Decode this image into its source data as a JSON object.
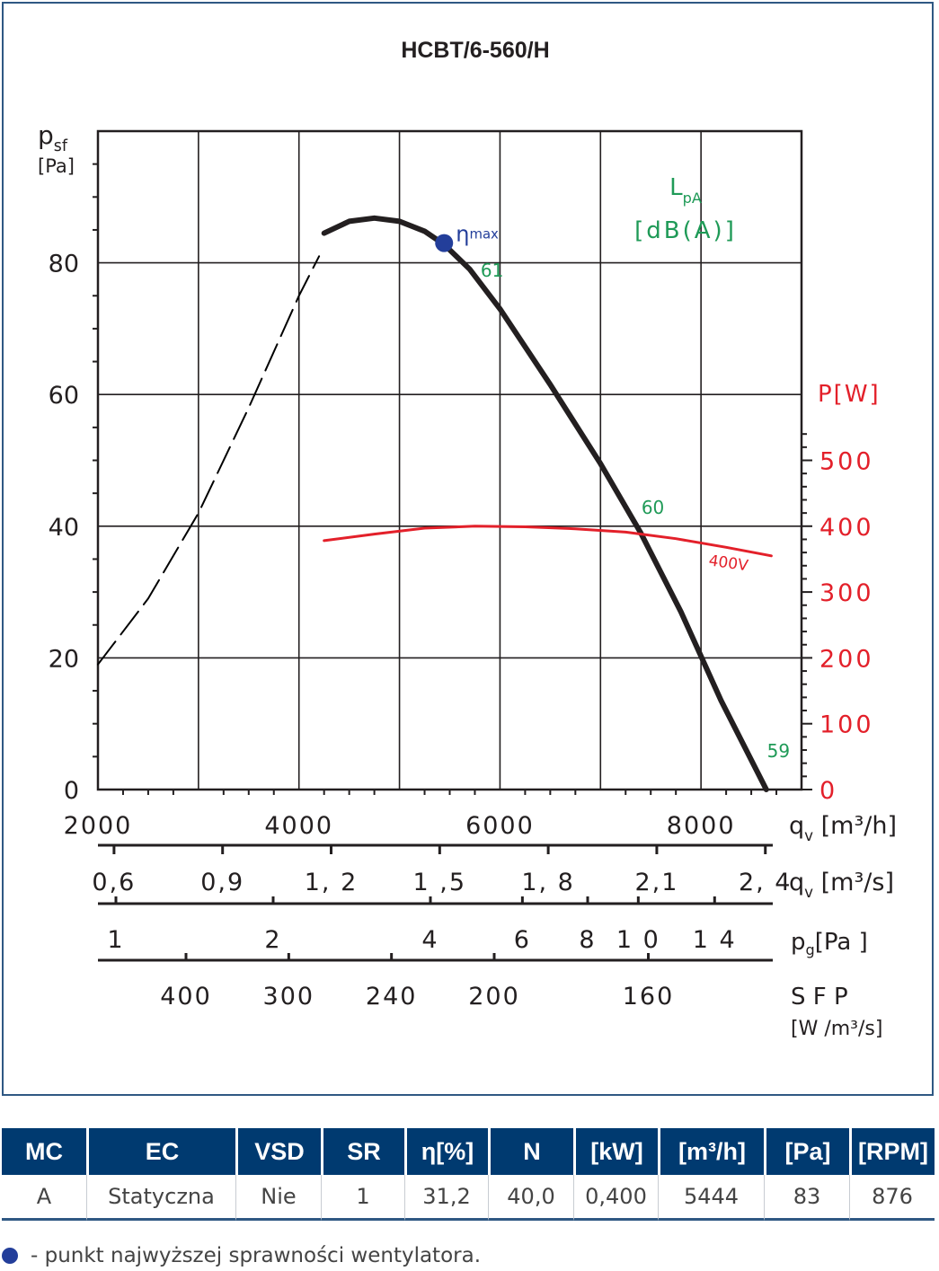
{
  "chart_data": {
    "type": "line",
    "title": "HCBT/6-560/H",
    "y_axis": {
      "label": "p",
      "label_sub": "sf",
      "unit": "[Pa]",
      "range": [
        0,
        100
      ],
      "ticks": [
        "0",
        "20",
        "40",
        "60",
        "80"
      ]
    },
    "x_axis": {
      "label": "q",
      "label_sub": "v",
      "unit": "[m³/h]",
      "range": [
        2000,
        9000
      ],
      "ticks": [
        "2000",
        "4000",
        "6000",
        "8000"
      ]
    },
    "power_axis": {
      "label": "P[W]",
      "range": [
        0,
        1000
      ],
      "ticks": [
        "0",
        "100",
        "200",
        "300",
        "400",
        "500"
      ]
    },
    "sound_label": {
      "line1": "L",
      "sub": "pA",
      "line2": "[dB(A)]"
    },
    "scale_qs": {
      "label": "q",
      "label_sub": "v",
      "unit": "[m³/s]",
      "ticks": [
        {
          "text": "0,6",
          "value": 0.6
        },
        {
          "text": "0,9",
          "value": 0.9
        },
        {
          "text": "1, 2",
          "value": 1.2
        },
        {
          "text": "1 ,5",
          "value": 1.5
        },
        {
          "text": "1, 8",
          "value": 1.8
        },
        {
          "text": "2,1",
          "value": 2.1
        },
        {
          "text": "2, 4",
          "value": 2.4
        }
      ]
    },
    "scale_pg": {
      "label": "p",
      "label_sub": "g",
      "unit": "[Pa ]",
      "ticks": [
        {
          "text": "1",
          "value": 1
        },
        {
          "text": "2",
          "value": 2
        },
        {
          "text": "4",
          "value": 4
        },
        {
          "text": "6",
          "value": 6
        },
        {
          "text": "8",
          "value": 8
        },
        {
          "text": "1 0",
          "value": 10
        },
        {
          "text": "1 4",
          "value": 14
        }
      ]
    },
    "scale_sfp": {
      "label": "S F P",
      "unit": "[W /m³/s]",
      "ticks": [
        {
          "text": "400",
          "value": 400
        },
        {
          "text": "300",
          "value": 300
        },
        {
          "text": "240",
          "value": 240
        },
        {
          "text": "200",
          "value": 200
        },
        {
          "text": "160",
          "value": 160
        }
      ]
    },
    "grid": true,
    "series": [
      {
        "role": "pressure_unstable",
        "color": "#000000",
        "style": "dashed",
        "points": [
          [
            2000,
            19
          ],
          [
            2500,
            29
          ],
          [
            3000,
            42
          ],
          [
            3500,
            58
          ],
          [
            4000,
            75
          ],
          [
            4200,
            81
          ]
        ]
      },
      {
        "role": "pressure",
        "color": "#231f20",
        "style": "solid",
        "points": [
          [
            4250,
            84.5
          ],
          [
            4500,
            86.3
          ],
          [
            4750,
            86.8
          ],
          [
            5000,
            86.3
          ],
          [
            5250,
            84.8
          ],
          [
            5444,
            82.8
          ],
          [
            5700,
            79
          ],
          [
            6000,
            73
          ],
          [
            6500,
            61.5
          ],
          [
            7000,
            49.5
          ],
          [
            7400,
            39
          ],
          [
            7800,
            27
          ],
          [
            8200,
            13.5
          ],
          [
            8650,
            0
          ]
        ]
      },
      {
        "name": "400V",
        "role": "power",
        "axis": "power",
        "color": "#e3202a",
        "style": "solid",
        "points": [
          [
            4250,
            378
          ],
          [
            4750,
            388
          ],
          [
            5250,
            397
          ],
          [
            5750,
            400
          ],
          [
            6250,
            399
          ],
          [
            6750,
            396
          ],
          [
            7250,
            391
          ],
          [
            7750,
            381
          ],
          [
            8250,
            368
          ],
          [
            8700,
            355
          ]
        ]
      }
    ],
    "eta_max": {
      "x": 5444,
      "y": 83,
      "label": "η",
      "label_sub": "max",
      "color": "#233e9a"
    },
    "sound_levels": [
      {
        "text": "61",
        "x": 5700,
        "y": 79
      },
      {
        "text": "60",
        "x": 7300,
        "y": 43
      },
      {
        "text": "59",
        "x": 8550,
        "y": 6
      }
    ]
  },
  "table": {
    "headers": [
      "MC",
      "EC",
      "VSD",
      "SR",
      "η[%]",
      "N",
      "[kW]",
      "[m³/h]",
      "[Pa]",
      "[RPM]"
    ],
    "row": [
      "A",
      "Statyczna",
      "Nie",
      "1",
      "31,2",
      "40,0",
      "0,400",
      "5444",
      "83",
      "876"
    ]
  },
  "footnote": "- punkt najwyższej sprawności wentylatora.",
  "colors": {
    "frame": "#2f5883",
    "table_header": "#003a70",
    "power": "#e3202a",
    "sound": "#1f9a57",
    "eta_dot": "#233e9a"
  }
}
